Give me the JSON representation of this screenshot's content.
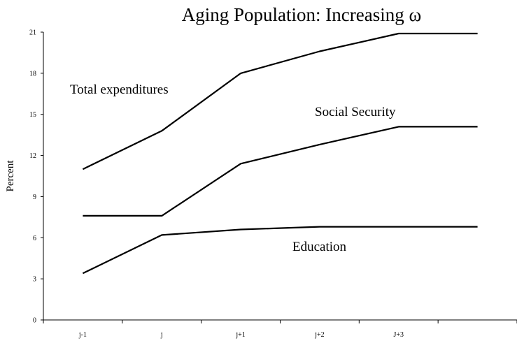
{
  "chart_data": {
    "type": "line",
    "title": "Aging Population: Increasing ω",
    "xlabel": "",
    "ylabel": "Percent",
    "categories": [
      "j-1",
      "j",
      "j+1",
      "j+2",
      "J+3",
      ""
    ],
    "yticks": [
      0,
      3,
      6,
      9,
      12,
      15,
      18,
      21
    ],
    "ylim": [
      0,
      21
    ],
    "grid": false,
    "legend": "none",
    "series": [
      {
        "name": "Total expenditures",
        "values": [
          11.0,
          13.8,
          18.0,
          19.6,
          20.9,
          20.9
        ]
      },
      {
        "name": "Social Security",
        "values": [
          7.6,
          7.6,
          11.4,
          12.8,
          14.1,
          14.1
        ]
      },
      {
        "name": "Education",
        "values": [
          3.4,
          6.2,
          6.6,
          6.8,
          6.8,
          6.8
        ]
      }
    ],
    "annotations": [
      "Total expenditures",
      "Social Security",
      "Education"
    ]
  }
}
